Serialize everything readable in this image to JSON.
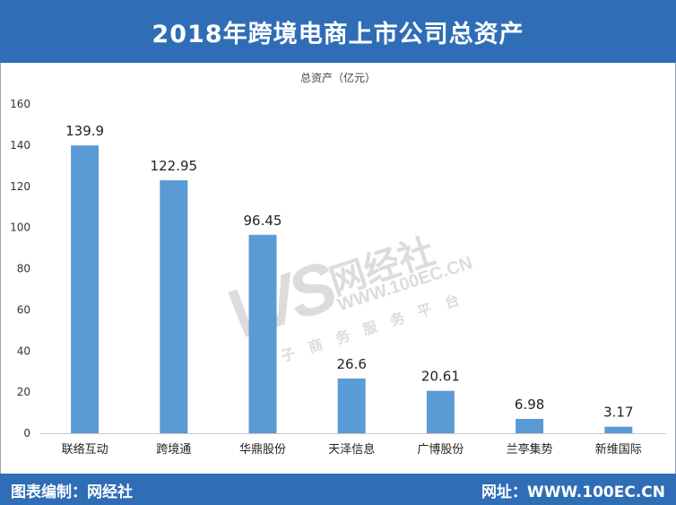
{
  "title": "2018年跨境电商上市公司总资产",
  "watermark": {
    "logo": "WS",
    "name": "网经社",
    "url": "WWW.100EC.CN",
    "tagline": "电子商务服务平台"
  },
  "footer": {
    "left": "图表编制：网经社",
    "right": "网址：WWW.100EC.CN"
  },
  "colors": {
    "header": "#2f6db6",
    "bar": "#5b9bd5"
  },
  "chart_data": {
    "type": "bar",
    "series_label": "总资产（亿元）",
    "categories": [
      "联络互动",
      "跨境通",
      "华鼎股份",
      "天泽信息",
      "广博股份",
      "兰亭集势",
      "新维国际"
    ],
    "values": [
      139.9,
      122.95,
      96.45,
      26.6,
      20.61,
      6.98,
      3.17
    ],
    "value_labels": [
      "139.9",
      "122.95",
      "96.45",
      "26.6",
      "20.61",
      "6.98",
      "3.17"
    ],
    "yticks": [
      "0",
      "20",
      "40",
      "60",
      "80",
      "100",
      "120",
      "140",
      "160"
    ],
    "ylim": [
      0,
      160
    ],
    "grid": false
  }
}
